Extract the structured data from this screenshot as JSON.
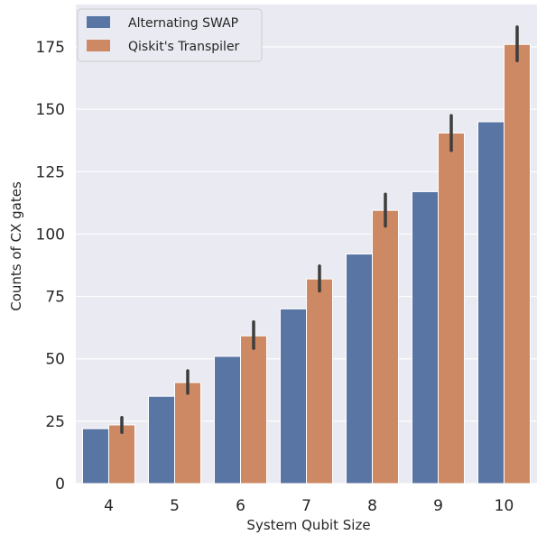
{
  "chart_data": {
    "type": "bar",
    "xlabel": "System Qubit Size",
    "ylabel": "Counts of CX gates",
    "categories": [
      "4",
      "5",
      "6",
      "7",
      "8",
      "9",
      "10"
    ],
    "ylim": [
      0,
      192
    ],
    "yticks": [
      0,
      25,
      50,
      75,
      100,
      125,
      150,
      175
    ],
    "grid": true,
    "legend_position": "top-left",
    "series": [
      {
        "name": "Alternating SWAP",
        "color": "#5875a4",
        "values": [
          22,
          35,
          51,
          70,
          92,
          117,
          145
        ],
        "error_low": [
          null,
          null,
          null,
          null,
          null,
          null,
          null
        ],
        "error_high": [
          null,
          null,
          null,
          null,
          null,
          null,
          null
        ]
      },
      {
        "name": "Qiskit's Transpiler",
        "color": "#cc8963",
        "values": [
          23.5,
          40.5,
          59.2,
          82,
          109.5,
          140.5,
          176
        ],
        "error_low": [
          20.5,
          36.2,
          54.2,
          77.2,
          103.2,
          133.5,
          169.5
        ],
        "error_high": [
          26.5,
          45.2,
          64.8,
          87.2,
          116,
          147.5,
          183
        ]
      }
    ]
  }
}
